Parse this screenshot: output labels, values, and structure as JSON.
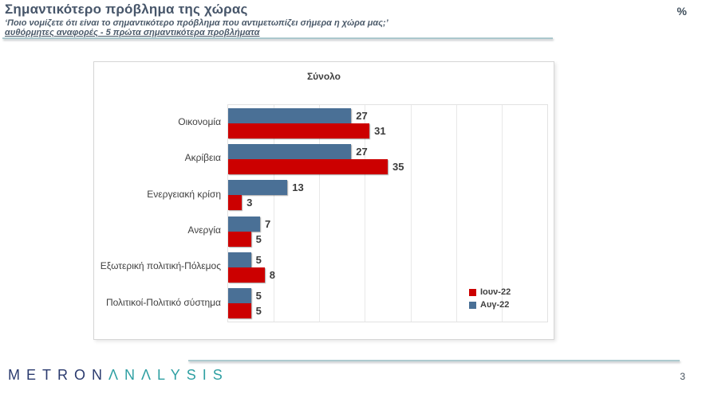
{
  "header": {
    "title": "Σημαντικότερο πρόβλημα της χώρας",
    "subtitle": "‘Ποιο νομίζετε ότι  είναι το σημαντικότερο πρόβλημα που αντιμετωπίζει σήμερα η χώρα μας;’",
    "note": "αυθόρμητες αναφορές - 5 πρώτα σημαντικότερα προβλήματα",
    "unit": "%"
  },
  "chart_data": {
    "type": "bar",
    "orientation": "horizontal",
    "panel_title": "Σύνολο",
    "categories": [
      "Οικονομία",
      "Ακρίβεια",
      "Ενεργειακή κρίση",
      "Ανεργία",
      "Εξωτερική πολιτική-Πόλεμος",
      "Πολιτικοί-Πολιτικό σύστημα"
    ],
    "series": [
      {
        "name": "Ιουν-22",
        "color": "#cc0000",
        "values": [
          31,
          35,
          3,
          5,
          8,
          5
        ]
      },
      {
        "name": "Αυγ-22",
        "color": "#4a7096",
        "values": [
          27,
          27,
          13,
          7,
          5,
          5
        ]
      }
    ],
    "row_order_top_to_bottom": [
      1,
      0
    ],
    "xlim": [
      0,
      70
    ],
    "gridline_step": 10,
    "grid": true,
    "value_labels": true,
    "legend_position": "inside-bottom-right"
  },
  "footer": {
    "logo_part1": "METRON",
    "logo_part2": "ΛNΛLYSIS",
    "page_number": "3"
  },
  "colors": {
    "accent_text": "#47566a",
    "bar_red": "#cc0000",
    "bar_blue": "#4a7096",
    "divider_teal": "#a9c8ce",
    "logo_navy": "#2a3a6e",
    "logo_teal": "#2fa0a3"
  }
}
